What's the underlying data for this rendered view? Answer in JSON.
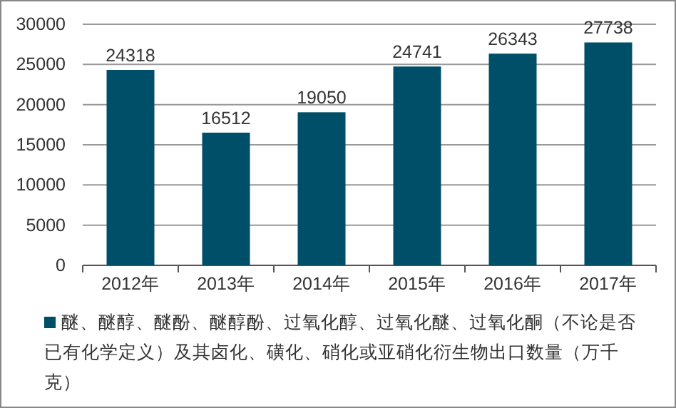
{
  "chart_data": {
    "type": "bar",
    "categories": [
      "2012年",
      "2013年",
      "2014年",
      "2015年",
      "2016年",
      "2017年"
    ],
    "series": [
      {
        "name": "醚、醚醇、醚酚、醚醇酚、过氧化醇、过氧化醚、过氧化酮（不论是否已有化学定义）及其卤化、磺化、硝化或亚硝化衍生物出口数量（万千克）",
        "color": "#004f69",
        "values": [
          24318,
          16512,
          19050,
          24741,
          26343,
          27738
        ]
      }
    ],
    "ylim": [
      0,
      30000
    ],
    "yticks": [
      0,
      5000,
      10000,
      15000,
      20000,
      25000,
      30000
    ],
    "grid": "y",
    "data_labels": true,
    "legend": "bottom"
  }
}
